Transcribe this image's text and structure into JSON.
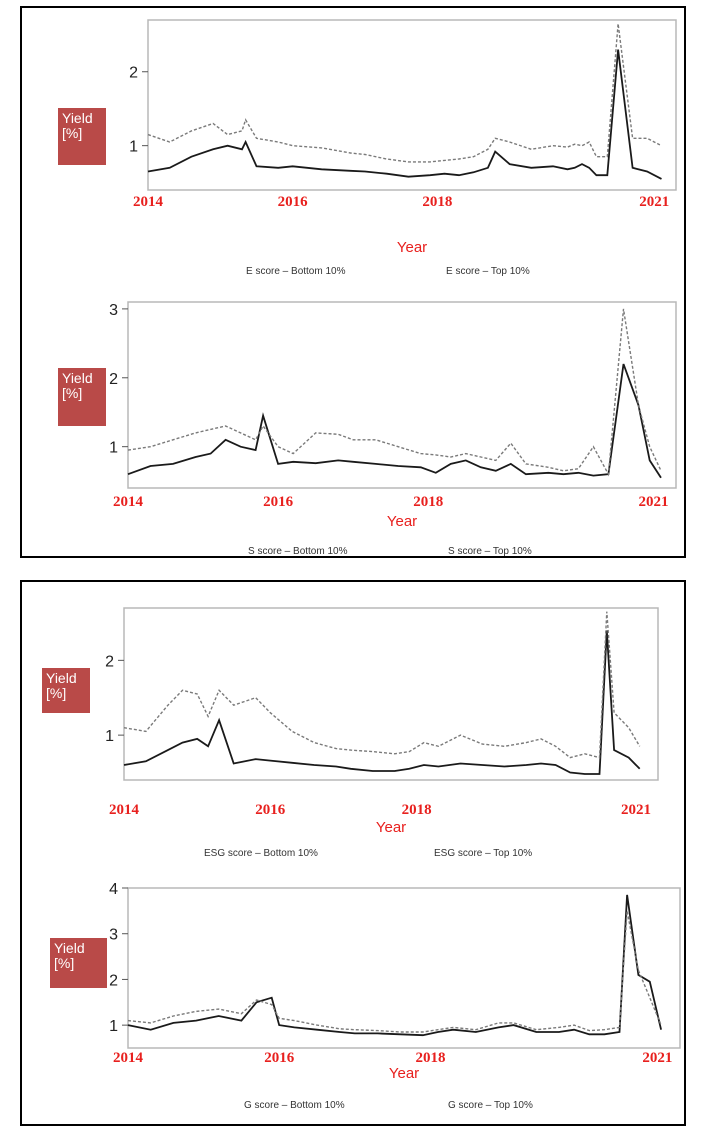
{
  "chart_data": [
    {
      "type": "line",
      "ylabel": "Yield [%]",
      "xlabel": "Year",
      "ylabel_lines": [
        "Yield",
        "[%]"
      ],
      "x_ticks": [
        "2014",
        "2016",
        "2018",
        "2021"
      ],
      "x_tick_years": [
        2014,
        2016,
        2018,
        2021
      ],
      "y_ticks": [
        1,
        2
      ],
      "xlim": [
        2014,
        2021.3
      ],
      "ylim": [
        0.4,
        2.7
      ],
      "legend": [
        "E score – Bottom 10%",
        "E score – Top 10%"
      ],
      "x": [
        2014.0,
        2014.3,
        2014.6,
        2014.9,
        2015.1,
        2015.3,
        2015.35,
        2015.5,
        2015.8,
        2016.0,
        2016.4,
        2016.8,
        2017.0,
        2017.3,
        2017.6,
        2017.9,
        2018.1,
        2018.3,
        2018.5,
        2018.7,
        2018.8,
        2019.0,
        2019.3,
        2019.6,
        2019.8,
        2019.9,
        2020.0,
        2020.1,
        2020.2,
        2020.35,
        2020.5,
        2020.7,
        2020.9,
        2021.1
      ],
      "series": [
        {
          "name": "E score – Bottom 10%",
          "style": "solid",
          "values": [
            0.65,
            0.7,
            0.85,
            0.95,
            1.0,
            0.95,
            1.05,
            0.72,
            0.7,
            0.72,
            0.68,
            0.66,
            0.65,
            0.62,
            0.58,
            0.6,
            0.62,
            0.6,
            0.64,
            0.7,
            0.92,
            0.75,
            0.7,
            0.72,
            0.68,
            0.7,
            0.75,
            0.7,
            0.6,
            0.6,
            2.3,
            0.7,
            0.65,
            0.55
          ]
        },
        {
          "name": "E score – Top 10%",
          "style": "dashed",
          "values": [
            1.15,
            1.05,
            1.2,
            1.3,
            1.15,
            1.2,
            1.35,
            1.1,
            1.05,
            1.0,
            0.97,
            0.9,
            0.88,
            0.82,
            0.78,
            0.78,
            0.8,
            0.82,
            0.85,
            0.95,
            1.1,
            1.05,
            0.95,
            1.0,
            0.98,
            1.02,
            1.0,
            1.05,
            0.85,
            0.85,
            2.65,
            1.1,
            1.1,
            1.0
          ]
        }
      ]
    },
    {
      "type": "line",
      "ylabel": "Yield [%]",
      "xlabel": "Year",
      "ylabel_lines": [
        "Yield",
        "[%]"
      ],
      "x_ticks": [
        "2014",
        "2016",
        "2018",
        "2021"
      ],
      "x_tick_years": [
        2014,
        2016,
        2018,
        2021
      ],
      "y_ticks": [
        1,
        2,
        3
      ],
      "xlim": [
        2014,
        2021.3
      ],
      "ylim": [
        0.4,
        3.1
      ],
      "legend": [
        "S score – Bottom 10%",
        "S score – Top 10%"
      ],
      "x": [
        2014.0,
        2014.3,
        2014.6,
        2014.9,
        2015.1,
        2015.3,
        2015.5,
        2015.7,
        2015.8,
        2016.0,
        2016.2,
        2016.5,
        2016.8,
        2017.0,
        2017.3,
        2017.6,
        2017.9,
        2018.1,
        2018.3,
        2018.5,
        2018.7,
        2018.9,
        2019.1,
        2019.3,
        2019.6,
        2019.8,
        2020.0,
        2020.2,
        2020.4,
        2020.6,
        2020.8,
        2020.95,
        2021.1
      ],
      "series": [
        {
          "name": "S score – Bottom 10%",
          "style": "solid",
          "values": [
            0.6,
            0.72,
            0.75,
            0.85,
            0.9,
            1.1,
            1.0,
            0.95,
            1.45,
            0.75,
            0.78,
            0.76,
            0.8,
            0.78,
            0.75,
            0.72,
            0.7,
            0.62,
            0.75,
            0.8,
            0.7,
            0.65,
            0.75,
            0.6,
            0.62,
            0.6,
            0.62,
            0.58,
            0.6,
            2.2,
            1.6,
            0.8,
            0.55
          ]
        },
        {
          "name": "S score – Top 10%",
          "style": "dashed",
          "values": [
            0.95,
            1.0,
            1.1,
            1.2,
            1.25,
            1.3,
            1.2,
            1.1,
            1.3,
            1.0,
            0.9,
            1.2,
            1.18,
            1.1,
            1.1,
            1.0,
            0.9,
            0.88,
            0.85,
            0.9,
            0.85,
            0.8,
            1.05,
            0.75,
            0.7,
            0.65,
            0.68,
            1.0,
            0.6,
            3.0,
            1.6,
            1.0,
            0.65
          ]
        }
      ]
    },
    {
      "type": "line",
      "ylabel": "Yield [%]",
      "xlabel": "Year",
      "ylabel_lines": [
        "Yield",
        "[%]"
      ],
      "x_ticks": [
        "2014",
        "2016",
        "2018",
        "2021"
      ],
      "x_tick_years": [
        2014,
        2016,
        2018,
        2021
      ],
      "y_ticks": [
        1,
        2
      ],
      "xlim": [
        2014,
        2021.3
      ],
      "ylim": [
        0.4,
        2.7
      ],
      "legend": [
        "ESG score – Bottom 10%",
        "ESG score – Top 10%"
      ],
      "x": [
        2014.0,
        2014.3,
        2014.6,
        2014.8,
        2015.0,
        2015.15,
        2015.3,
        2015.5,
        2015.8,
        2016.0,
        2016.3,
        2016.6,
        2016.9,
        2017.1,
        2017.4,
        2017.7,
        2017.9,
        2018.1,
        2018.3,
        2018.6,
        2018.9,
        2019.2,
        2019.5,
        2019.7,
        2019.9,
        2020.1,
        2020.3,
        2020.5,
        2020.6,
        2020.7,
        2020.9,
        2021.05
      ],
      "series": [
        {
          "name": "ESG score – Bottom 10%",
          "style": "solid",
          "values": [
            0.6,
            0.65,
            0.8,
            0.9,
            0.95,
            0.85,
            1.2,
            0.62,
            0.68,
            0.66,
            0.63,
            0.6,
            0.58,
            0.55,
            0.52,
            0.52,
            0.55,
            0.6,
            0.58,
            0.62,
            0.6,
            0.58,
            0.6,
            0.62,
            0.6,
            0.5,
            0.48,
            0.48,
            2.4,
            0.8,
            0.7,
            0.55
          ]
        },
        {
          "name": "ESG score – Top 10%",
          "style": "dashed",
          "values": [
            1.1,
            1.05,
            1.4,
            1.6,
            1.55,
            1.25,
            1.6,
            1.4,
            1.5,
            1.3,
            1.05,
            0.9,
            0.82,
            0.8,
            0.78,
            0.75,
            0.78,
            0.9,
            0.85,
            1.0,
            0.88,
            0.85,
            0.9,
            0.95,
            0.85,
            0.7,
            0.75,
            0.7,
            2.65,
            1.3,
            1.1,
            0.85
          ]
        }
      ]
    },
    {
      "type": "line",
      "ylabel": "Yield [%]",
      "xlabel": "Year",
      "ylabel_lines": [
        "Yield",
        "[%]"
      ],
      "x_ticks": [
        "2014",
        "2016",
        "2018",
        "2021"
      ],
      "x_tick_years": [
        2014,
        2016,
        2018,
        2021
      ],
      "y_ticks": [
        1,
        2,
        3,
        4
      ],
      "xlim": [
        2014,
        2021.3
      ],
      "ylim": [
        0.5,
        4.0
      ],
      "legend": [
        "G score – Bottom 10%",
        "G score – Top 10%"
      ],
      "x": [
        2014.0,
        2014.3,
        2014.6,
        2014.9,
        2015.2,
        2015.5,
        2015.7,
        2015.9,
        2016.0,
        2016.2,
        2016.5,
        2016.8,
        2017.0,
        2017.3,
        2017.6,
        2017.9,
        2018.1,
        2018.3,
        2018.6,
        2018.9,
        2019.1,
        2019.4,
        2019.7,
        2019.9,
        2020.1,
        2020.3,
        2020.5,
        2020.6,
        2020.75,
        2020.9,
        2021.05
      ],
      "series": [
        {
          "name": "G score – Bottom 10%",
          "style": "solid",
          "values": [
            1.0,
            0.9,
            1.05,
            1.1,
            1.2,
            1.1,
            1.5,
            1.6,
            1.0,
            0.95,
            0.9,
            0.85,
            0.82,
            0.82,
            0.8,
            0.78,
            0.85,
            0.9,
            0.85,
            0.95,
            1.0,
            0.85,
            0.85,
            0.9,
            0.8,
            0.8,
            0.85,
            3.85,
            2.1,
            1.95,
            0.9
          ]
        },
        {
          "name": "G score – Top 10%",
          "style": "dashed",
          "values": [
            1.1,
            1.05,
            1.2,
            1.3,
            1.35,
            1.25,
            1.55,
            1.45,
            1.15,
            1.1,
            1.0,
            0.92,
            0.9,
            0.88,
            0.85,
            0.85,
            0.9,
            0.95,
            0.9,
            1.05,
            1.05,
            0.9,
            0.95,
            1.0,
            0.88,
            0.9,
            0.95,
            3.5,
            2.2,
            1.6,
            1.0
          ]
        }
      ]
    }
  ]
}
